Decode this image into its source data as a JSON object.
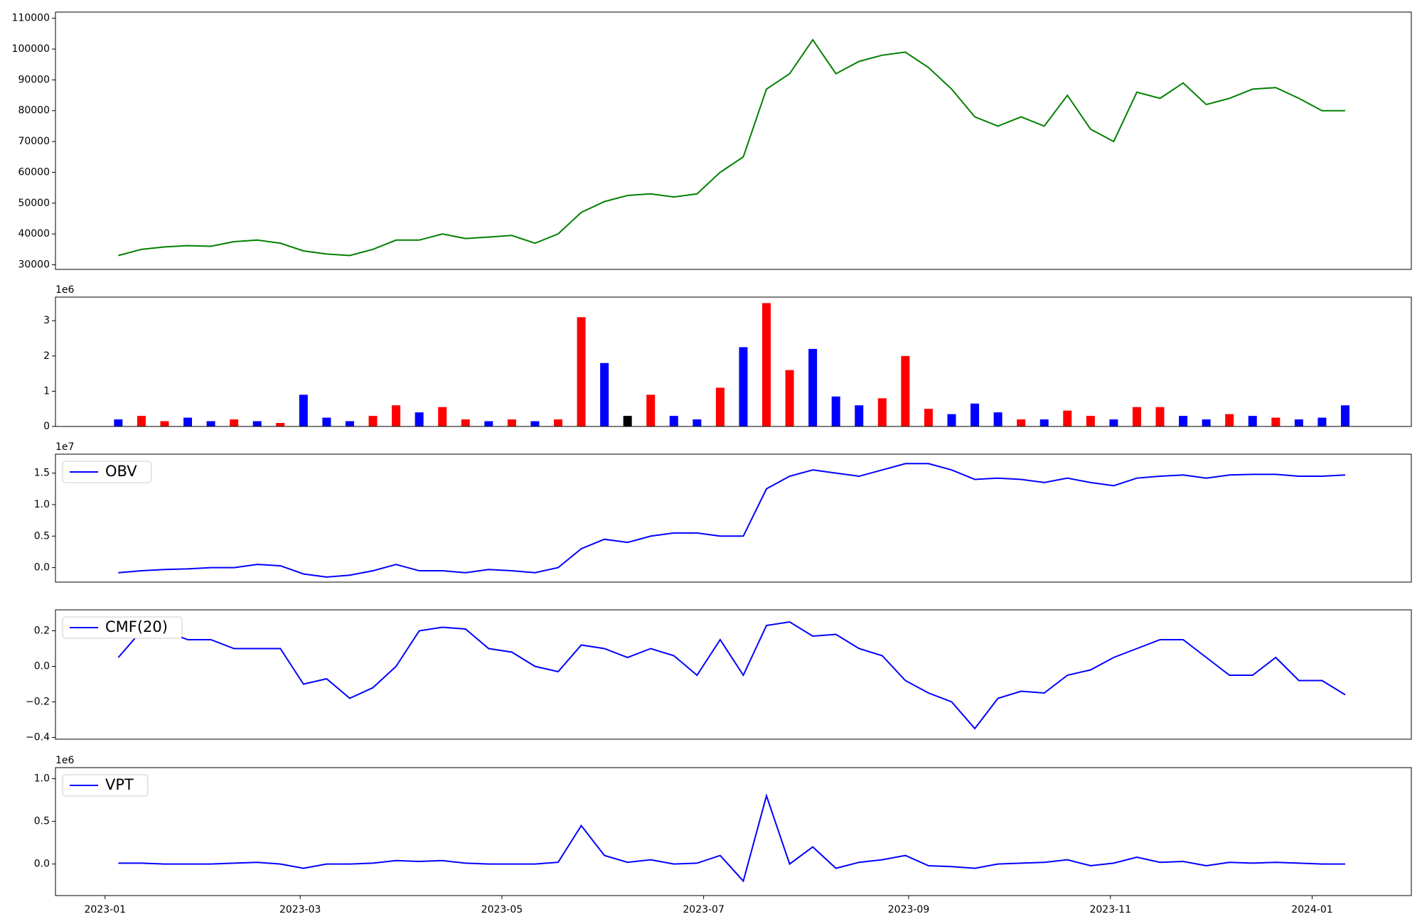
{
  "chart_data": [
    {
      "type": "line",
      "x": [
        "2023-01-05",
        "2023-01-12",
        "2023-01-19",
        "2023-01-26",
        "2023-02-02",
        "2023-02-09",
        "2023-02-16",
        "2023-02-23",
        "2023-03-02",
        "2023-03-09",
        "2023-03-16",
        "2023-03-23",
        "2023-03-30",
        "2023-04-06",
        "2023-04-13",
        "2023-04-20",
        "2023-04-27",
        "2023-05-04",
        "2023-05-11",
        "2023-05-18",
        "2023-05-25",
        "2023-06-01",
        "2023-06-08",
        "2023-06-15",
        "2023-06-22",
        "2023-06-29",
        "2023-07-06",
        "2023-07-13",
        "2023-07-20",
        "2023-07-27",
        "2023-08-03",
        "2023-08-10",
        "2023-08-17",
        "2023-08-24",
        "2023-08-31",
        "2023-09-07",
        "2023-09-14",
        "2023-09-21",
        "2023-09-28",
        "2023-10-05",
        "2023-10-12",
        "2023-10-19",
        "2023-10-26",
        "2023-11-02",
        "2023-11-09",
        "2023-11-16",
        "2023-11-23",
        "2023-11-30",
        "2023-12-07",
        "2023-12-14",
        "2023-12-21",
        "2023-12-28",
        "2024-01-04",
        "2024-01-11"
      ],
      "series": [
        {
          "color": "#008000",
          "values": [
            33000,
            35000,
            35800,
            36200,
            36000,
            37500,
            38000,
            37000,
            34500,
            33500,
            33000,
            35000,
            38000,
            38000,
            40000,
            38500,
            39000,
            39500,
            37000,
            40000,
            47000,
            50500,
            52500,
            53000,
            52000,
            53000,
            60000,
            65000,
            87000,
            92000,
            103000,
            92000,
            96000,
            98000,
            99000,
            94000,
            87000,
            78000,
            75000,
            78000,
            75000,
            85000,
            74000,
            70000,
            86000,
            84000,
            89000,
            82000,
            84000,
            87000,
            87500,
            84000,
            80000,
            80000
          ]
        }
      ],
      "xlim": [
        "2022-12-17",
        "2024-01-31"
      ],
      "ylim": [
        28500,
        112000
      ],
      "yticks": [
        30000,
        40000,
        50000,
        60000,
        70000,
        80000,
        90000,
        100000,
        110000
      ]
    },
    {
      "type": "bar",
      "offset_text": "1e6",
      "x": [
        "2023-01-05",
        "2023-01-12",
        "2023-01-19",
        "2023-01-26",
        "2023-02-02",
        "2023-02-09",
        "2023-02-16",
        "2023-02-23",
        "2023-03-02",
        "2023-03-09",
        "2023-03-16",
        "2023-03-23",
        "2023-03-30",
        "2023-04-06",
        "2023-04-13",
        "2023-04-20",
        "2023-04-27",
        "2023-05-04",
        "2023-05-11",
        "2023-05-18",
        "2023-05-25",
        "2023-06-01",
        "2023-06-08",
        "2023-06-15",
        "2023-06-22",
        "2023-06-29",
        "2023-07-06",
        "2023-07-13",
        "2023-07-20",
        "2023-07-27",
        "2023-08-03",
        "2023-08-10",
        "2023-08-17",
        "2023-08-24",
        "2023-08-31",
        "2023-09-07",
        "2023-09-14",
        "2023-09-21",
        "2023-09-28",
        "2023-10-05",
        "2023-10-12",
        "2023-10-19",
        "2023-10-26",
        "2023-11-02",
        "2023-11-09",
        "2023-11-16",
        "2023-11-23",
        "2023-11-30",
        "2023-12-07",
        "2023-12-14",
        "2023-12-21",
        "2023-12-28",
        "2024-01-04",
        "2024-01-11"
      ],
      "values": [
        0.2,
        0.3,
        0.15,
        0.25,
        0.15,
        0.2,
        0.15,
        0.1,
        0.9,
        0.25,
        0.15,
        0.3,
        0.6,
        0.4,
        0.55,
        0.2,
        0.15,
        0.2,
        0.15,
        0.2,
        3.1,
        1.8,
        0.3,
        0.9,
        0.3,
        0.2,
        1.1,
        2.25,
        3.5,
        1.6,
        2.2,
        0.85,
        0.6,
        0.8,
        2.0,
        0.5,
        0.35,
        0.65,
        0.4,
        0.2,
        0.2,
        0.45,
        0.3,
        0.2,
        0.55,
        0.55,
        0.3,
        0.2,
        0.35,
        0.3,
        0.25,
        0.2,
        0.25,
        0.6
      ],
      "colors": [
        "#0000ff",
        "#ff0000",
        "#ff0000",
        "#0000ff",
        "#0000ff",
        "#ff0000",
        "#0000ff",
        "#ff0000",
        "#0000ff",
        "#0000ff",
        "#0000ff",
        "#ff0000",
        "#ff0000",
        "#0000ff",
        "#ff0000",
        "#ff0000",
        "#0000ff",
        "#ff0000",
        "#0000ff",
        "#ff0000",
        "#ff0000",
        "#0000ff",
        "#000000",
        "#ff0000",
        "#0000ff",
        "#0000ff",
        "#ff0000",
        "#0000ff",
        "#ff0000",
        "#ff0000",
        "#0000ff",
        "#0000ff",
        "#0000ff",
        "#ff0000",
        "#ff0000",
        "#ff0000",
        "#0000ff",
        "#0000ff",
        "#0000ff",
        "#ff0000",
        "#0000ff",
        "#ff0000",
        "#ff0000",
        "#0000ff",
        "#ff0000",
        "#ff0000",
        "#0000ff",
        "#0000ff",
        "#ff0000",
        "#0000ff",
        "#ff0000",
        "#0000ff",
        "#0000ff",
        "#0000ff"
      ],
      "xlim": [
        "2022-12-17",
        "2024-01-31"
      ],
      "ylim": [
        0,
        3.67
      ],
      "yticks": [
        0,
        1,
        2,
        3
      ]
    },
    {
      "type": "line",
      "offset_text": "1e7",
      "legend": "upper left",
      "x": [
        "2023-01-05",
        "2023-01-12",
        "2023-01-19",
        "2023-01-26",
        "2023-02-02",
        "2023-02-09",
        "2023-02-16",
        "2023-02-23",
        "2023-03-02",
        "2023-03-09",
        "2023-03-16",
        "2023-03-23",
        "2023-03-30",
        "2023-04-06",
        "2023-04-13",
        "2023-04-20",
        "2023-04-27",
        "2023-05-04",
        "2023-05-11",
        "2023-05-18",
        "2023-05-25",
        "2023-06-01",
        "2023-06-08",
        "2023-06-15",
        "2023-06-22",
        "2023-06-29",
        "2023-07-06",
        "2023-07-13",
        "2023-07-20",
        "2023-07-27",
        "2023-08-03",
        "2023-08-10",
        "2023-08-17",
        "2023-08-24",
        "2023-08-31",
        "2023-09-07",
        "2023-09-14",
        "2023-09-21",
        "2023-09-28",
        "2023-10-05",
        "2023-10-12",
        "2023-10-19",
        "2023-10-26",
        "2023-11-02",
        "2023-11-09",
        "2023-11-16",
        "2023-11-23",
        "2023-11-30",
        "2023-12-07",
        "2023-12-14",
        "2023-12-21",
        "2023-12-28",
        "2024-01-04",
        "2024-01-11"
      ],
      "series": [
        {
          "name": "OBV",
          "color": "#0000ff",
          "values": [
            -0.08,
            -0.05,
            -0.03,
            -0.02,
            0.0,
            0.0,
            0.05,
            0.03,
            -0.1,
            -0.15,
            -0.12,
            -0.05,
            0.05,
            -0.05,
            -0.05,
            -0.08,
            -0.03,
            -0.05,
            -0.08,
            0.0,
            0.3,
            0.45,
            0.4,
            0.5,
            0.55,
            0.55,
            0.5,
            0.5,
            1.25,
            1.45,
            1.55,
            1.5,
            1.45,
            1.55,
            1.65,
            1.65,
            1.55,
            1.4,
            1.42,
            1.4,
            1.35,
            1.42,
            1.35,
            1.3,
            1.42,
            1.45,
            1.47,
            1.42,
            1.47,
            1.48,
            1.48,
            1.45,
            1.45,
            1.47
          ]
        }
      ],
      "xlim": [
        "2022-12-17",
        "2024-01-31"
      ],
      "ylim": [
        -0.23,
        1.8
      ],
      "yticks": [
        {
          "value": 0,
          "label": "0.0"
        },
        {
          "value": 0.5,
          "label": "0.5"
        },
        {
          "value": 1,
          "label": "1.0"
        },
        {
          "value": 1.5,
          "label": "1.5"
        }
      ]
    },
    {
      "type": "line",
      "legend": "upper left",
      "x": [
        "2023-01-05",
        "2023-01-12",
        "2023-01-19",
        "2023-01-26",
        "2023-02-02",
        "2023-02-09",
        "2023-02-16",
        "2023-02-23",
        "2023-03-02",
        "2023-03-09",
        "2023-03-16",
        "2023-03-23",
        "2023-03-30",
        "2023-04-06",
        "2023-04-13",
        "2023-04-20",
        "2023-04-27",
        "2023-05-04",
        "2023-05-11",
        "2023-05-18",
        "2023-05-25",
        "2023-06-01",
        "2023-06-08",
        "2023-06-15",
        "2023-06-22",
        "2023-06-29",
        "2023-07-06",
        "2023-07-13",
        "2023-07-20",
        "2023-07-27",
        "2023-08-03",
        "2023-08-10",
        "2023-08-17",
        "2023-08-24",
        "2023-08-31",
        "2023-09-07",
        "2023-09-14",
        "2023-09-21",
        "2023-09-28",
        "2023-10-05",
        "2023-10-12",
        "2023-10-19",
        "2023-10-26",
        "2023-11-02",
        "2023-11-09",
        "2023-11-16",
        "2023-11-23",
        "2023-11-30",
        "2023-12-07",
        "2023-12-14",
        "2023-12-21",
        "2023-12-28",
        "2024-01-04",
        "2024-01-11"
      ],
      "series": [
        {
          "name": "CMF(20)",
          "color": "#0000ff",
          "values": [
            0.05,
            0.2,
            0.2,
            0.15,
            0.15,
            0.1,
            0.1,
            0.1,
            -0.1,
            -0.07,
            -0.18,
            -0.12,
            0.0,
            0.2,
            0.22,
            0.21,
            0.1,
            0.08,
            0.0,
            -0.03,
            0.12,
            0.1,
            0.05,
            0.1,
            0.06,
            -0.05,
            0.15,
            -0.05,
            0.23,
            0.25,
            0.17,
            0.18,
            0.1,
            0.06,
            -0.08,
            -0.15,
            -0.2,
            -0.35,
            -0.18,
            -0.14,
            -0.15,
            -0.05,
            -0.02,
            0.05,
            0.1,
            0.15,
            0.15,
            0.05,
            -0.05,
            -0.05,
            0.05,
            -0.08,
            -0.08,
            -0.16
          ]
        }
      ],
      "xlim": [
        "2022-12-17",
        "2024-01-31"
      ],
      "ylim": [
        -0.41,
        0.318
      ],
      "yticks": [
        {
          "value": -0.4,
          "label": "−0.4"
        },
        {
          "value": -0.2,
          "label": "−0.2"
        },
        {
          "value": 0,
          "label": "0.0"
        },
        {
          "value": 0.2,
          "label": "0.2"
        }
      ]
    },
    {
      "type": "line",
      "offset_text": "1e6",
      "legend": "upper left",
      "x": [
        "2023-01-05",
        "2023-01-12",
        "2023-01-19",
        "2023-01-26",
        "2023-02-02",
        "2023-02-09",
        "2023-02-16",
        "2023-02-23",
        "2023-03-02",
        "2023-03-09",
        "2023-03-16",
        "2023-03-23",
        "2023-03-30",
        "2023-04-06",
        "2023-04-13",
        "2023-04-20",
        "2023-04-27",
        "2023-05-04",
        "2023-05-11",
        "2023-05-18",
        "2023-05-25",
        "2023-06-01",
        "2023-06-08",
        "2023-06-15",
        "2023-06-22",
        "2023-06-29",
        "2023-07-06",
        "2023-07-13",
        "2023-07-20",
        "2023-07-27",
        "2023-08-03",
        "2023-08-10",
        "2023-08-17",
        "2023-08-24",
        "2023-08-31",
        "2023-09-07",
        "2023-09-14",
        "2023-09-21",
        "2023-09-28",
        "2023-10-05",
        "2023-10-12",
        "2023-10-19",
        "2023-10-26",
        "2023-11-02",
        "2023-11-09",
        "2023-11-16",
        "2023-11-23",
        "2023-11-30",
        "2023-12-07",
        "2023-12-14",
        "2023-12-21",
        "2023-12-28",
        "2024-01-04",
        "2024-01-11"
      ],
      "series": [
        {
          "name": "VPT",
          "color": "#0000ff",
          "values": [
            0.01,
            0.01,
            0.0,
            0.0,
            0.0,
            0.01,
            0.02,
            0.0,
            -0.05,
            0.0,
            0.0,
            0.01,
            0.04,
            0.03,
            0.04,
            0.01,
            0.0,
            0.0,
            0.0,
            0.02,
            0.45,
            0.1,
            0.02,
            0.05,
            0.0,
            0.01,
            0.1,
            -0.2,
            0.8,
            0.0,
            0.2,
            -0.05,
            0.02,
            0.05,
            0.1,
            -0.02,
            -0.03,
            -0.05,
            0.0,
            0.01,
            0.02,
            0.05,
            -0.02,
            0.01,
            0.08,
            0.02,
            0.03,
            -0.02,
            0.02,
            0.01,
            0.02,
            0.01,
            0.0,
            0.0
          ]
        }
      ],
      "xlim": [
        "2022-12-17",
        "2024-01-31"
      ],
      "ylim": [
        -0.37,
        1.13
      ],
      "yticks": [
        {
          "value": 0,
          "label": "0.0"
        },
        {
          "value": 0.5,
          "label": "0.5"
        },
        {
          "value": 1,
          "label": "1.0"
        }
      ],
      "xticks": [
        {
          "value": "2023-01-01",
          "label": "2023-01"
        },
        {
          "value": "2023-03-01",
          "label": "2023-03"
        },
        {
          "value": "2023-05-01",
          "label": "2023-05"
        },
        {
          "value": "2023-07-01",
          "label": "2023-07"
        },
        {
          "value": "2023-09-01",
          "label": "2023-09"
        },
        {
          "value": "2023-11-01",
          "label": "2023-11"
        },
        {
          "value": "2024-01-01",
          "label": "2024-01"
        }
      ]
    }
  ]
}
